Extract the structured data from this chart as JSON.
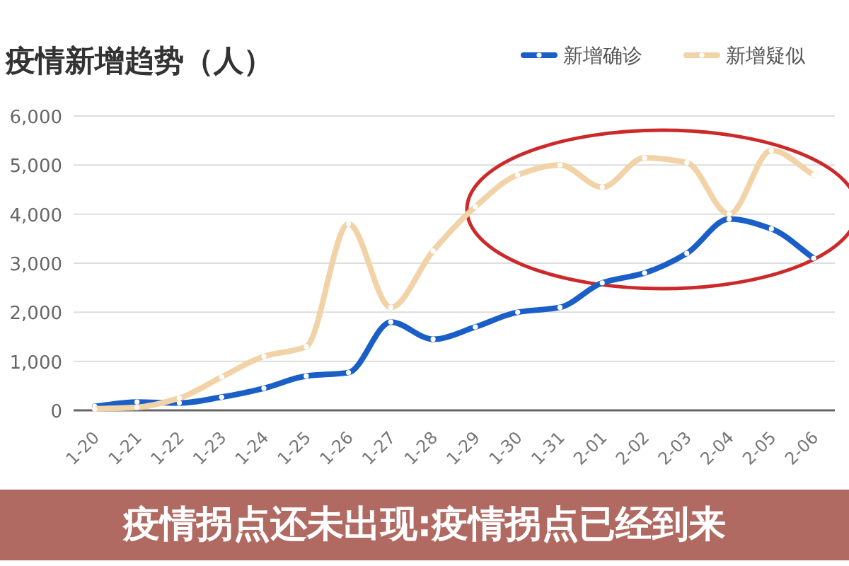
{
  "chart_data": {
    "type": "line",
    "title": "疫情新增趋势（人）",
    "categories": [
      "1-20",
      "1-21",
      "1-22",
      "1-23",
      "1-24",
      "1-25",
      "1-26",
      "1-27",
      "1-28",
      "1-29",
      "1-30",
      "1-31",
      "2-01",
      "2-02",
      "2-03",
      "2-04",
      "2-05",
      "2-06"
    ],
    "series": [
      {
        "name": "新增确诊",
        "color": "#1a5fc8",
        "values": [
          80,
          170,
          150,
          270,
          450,
          700,
          770,
          1800,
          1450,
          1700,
          2000,
          2100,
          2600,
          2800,
          3200,
          3900,
          3700,
          3100
        ]
      },
      {
        "name": "新增疑似",
        "color": "#f2d3a8",
        "values": [
          30,
          60,
          250,
          680,
          1100,
          1300,
          3800,
          2100,
          3250,
          4150,
          4800,
          5000,
          4550,
          5150,
          5050,
          4000,
          5300,
          4800
        ]
      }
    ],
    "ylim": [
      0,
      6000
    ],
    "yticks": [
      0,
      {
        "value": 1000,
        "label": "1,000"
      },
      {
        "value": 2000,
        "label": "2,000"
      },
      {
        "value": 3000,
        "label": "3,000"
      },
      {
        "value": 4000,
        "label": "4,000"
      },
      {
        "value": 5000,
        "label": "5,000"
      },
      {
        "value": 6000,
        "label": "6,000"
      }
    ],
    "grid": "y",
    "legend": "top right",
    "marker": "circle",
    "line_style": "solid",
    "annotations": [
      "疫情拐点还未出现:疫情拐点已经到来"
    ]
  }
}
